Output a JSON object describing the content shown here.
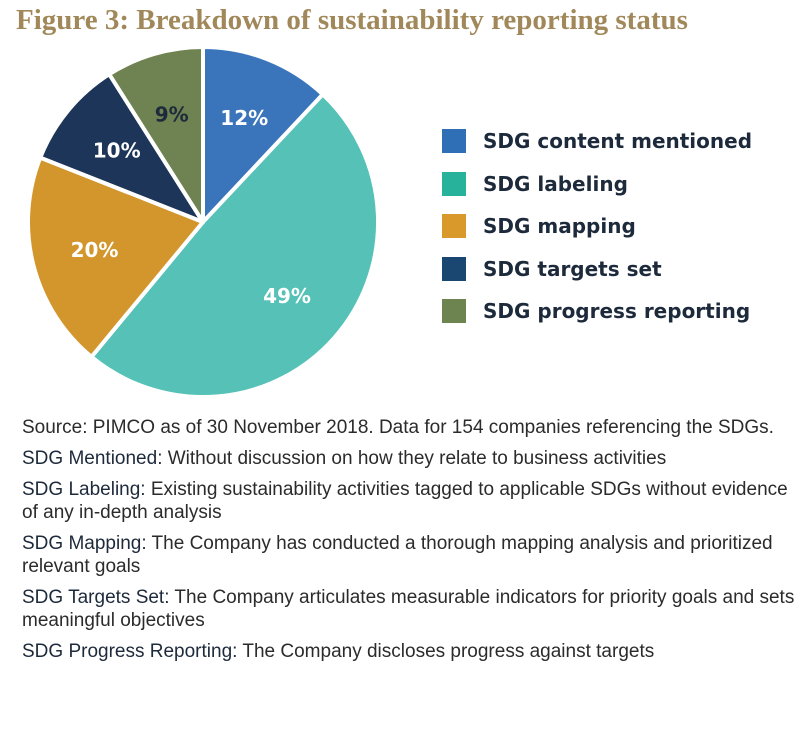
{
  "title": "Figure 3: Breakdown of sustainability reporting status",
  "chart_data": {
    "type": "pie",
    "title": "Figure 3: Breakdown of sustainability reporting status",
    "categories": [
      "SDG content mentioned",
      "SDG labeling",
      "SDG mapping",
      "SDG targets set",
      "SDG progress reporting"
    ],
    "values": [
      12,
      49,
      20,
      10,
      9
    ],
    "value_labels": [
      "12%",
      "49%",
      "20%",
      "10%",
      "9%"
    ],
    "colors": [
      "#3a75bc",
      "#55c1b7",
      "#d2962d",
      "#1d3559",
      "#6f8251"
    ],
    "legend_position": "right",
    "legend_swatch_colors": [
      "#2f6fb6",
      "#26b29b",
      "#d99a2b",
      "#1a4672",
      "#6e8450"
    ]
  },
  "notes": {
    "source": "Source: PIMCO as of 30 November 2018. Data for 154 companies referencing the SDGs.",
    "definitions": [
      {
        "term": "SDG Mentioned",
        "separator": ":",
        "text": " Without discussion on how they relate to business activities"
      },
      {
        "term": "SDG Labeling",
        "separator": ":",
        "text": " Existing sustainability activities tagged to applicable SDGs without evidence of any in-depth analysis"
      },
      {
        "term": "SDG Mapping",
        "separator": ":",
        "text": " The Company has conducted a thorough mapping analysis and prioritized relevant goals"
      },
      {
        "term": "SDG Targets Set",
        "separator": ":",
        "text": " The Company articulates measurable indicators for priority goals and sets meaningful objectives"
      },
      {
        "term": "SDG Progress Reporting",
        "separator": ":",
        "text": " The Company discloses progress against targets"
      }
    ]
  }
}
